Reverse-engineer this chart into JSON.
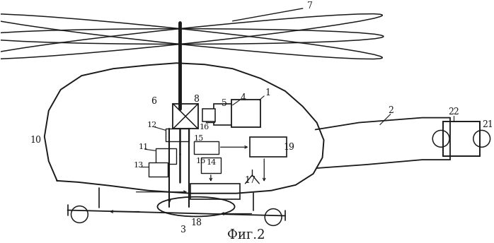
{
  "title": "Фиг.2",
  "title_fontsize": 13,
  "background_color": "#ffffff",
  "line_color": "#1a1a1a",
  "label_color": "#1a1a1a",
  "label_fontsize": 8,
  "figsize": [
    6.98,
    3.44
  ],
  "dpi": 100
}
